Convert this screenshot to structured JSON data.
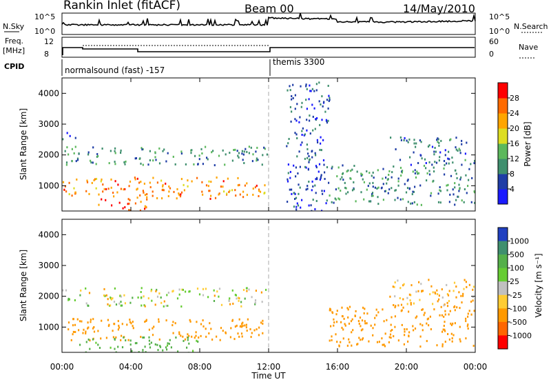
{
  "header": {
    "station": "Rankin Inlet (fitACF)",
    "beam": "Beam 00",
    "date": "14/May/2010"
  },
  "noise_panel": {
    "left_label": "N.Sky",
    "left_ticks": [
      "10^5",
      "10^0"
    ],
    "right_label": "N.Search",
    "right_ticks": [
      "10^5",
      "10^0"
    ]
  },
  "freq_panel": {
    "left_label_1": "Freq.",
    "left_label_2": "[MHz]",
    "left_ticks": [
      "12",
      "8"
    ],
    "right_label": "Nave",
    "right_ticks": [
      "60",
      "0"
    ]
  },
  "cpid_panel": {
    "label": "CPID",
    "segments": [
      {
        "text": "normalsound (fast) -157",
        "start_hour": 0
      },
      {
        "text": "themis 3300",
        "start_hour": 12
      }
    ]
  },
  "time_axis": {
    "label": "Time UT",
    "ticks": [
      "00:00",
      "04:00",
      "08:00",
      "12:00",
      "16:00",
      "20:00",
      "00:00"
    ],
    "tick_hours": [
      0,
      4,
      8,
      12,
      16,
      20,
      24
    ]
  },
  "range_axis": {
    "label": "Slant Range [km]",
    "ticks": [
      "1000",
      "2000",
      "3000",
      "4000"
    ],
    "tick_values": [
      1000,
      2000,
      3000,
      4000
    ],
    "min": 180,
    "max": 4500
  },
  "power_colorbar": {
    "label": "Power [dB]",
    "ticks": [
      "4",
      "8",
      "12",
      "16",
      "20",
      "24",
      "28"
    ],
    "colors": [
      "#1a1aff",
      "#1f3da6",
      "#3f8f6e",
      "#5cb85c",
      "#dddd22",
      "#ffa500",
      "#ff6a00",
      "#ff0000"
    ]
  },
  "velocity_colorbar": {
    "label": "Velocity [m s⁻¹]",
    "ticks": [
      "1000",
      "500",
      "100",
      "25",
      "-25",
      "-100",
      "-500",
      "-1000"
    ],
    "colors": [
      "#2040c0",
      "#3f8f6e",
      "#55b04a",
      "#66cc33",
      "#c0c0c0",
      "#ffcc33",
      "#ff9900",
      "#ff6600",
      "#ff0000"
    ]
  },
  "chart_data": {
    "type": "heatmap",
    "title": "Rankin Inlet (fitACF)  Beam 00  14/May/2010",
    "xlabel": "Time UT",
    "ylabel": "Slant Range [km]",
    "xlim": [
      0,
      24
    ],
    "ylim": [
      180,
      4500
    ],
    "mode_change_hour": 12,
    "power_regions": [
      {
        "t0": 0.0,
        "t1": 11.9,
        "r0": 600,
        "r1": 1300,
        "level": 24
      },
      {
        "t0": 0.0,
        "t1": 11.9,
        "r0": 1700,
        "r1": 2300,
        "level": 10
      },
      {
        "t0": 0.0,
        "t1": 0.8,
        "r0": 2500,
        "r1": 2800,
        "level": 6
      },
      {
        "t0": 2.0,
        "t1": 5.0,
        "r0": 180,
        "r1": 600,
        "level": 28
      },
      {
        "t0": 13.0,
        "t1": 15.5,
        "r0": 180,
        "r1": 4400,
        "level": 6
      },
      {
        "t0": 15.5,
        "t1": 24.0,
        "r0": 400,
        "r1": 1700,
        "level": 10
      },
      {
        "t0": 19.0,
        "t1": 24.0,
        "r0": 1700,
        "r1": 2600,
        "level": 8
      }
    ],
    "velocity_regions": [
      {
        "t0": 0.0,
        "t1": 11.9,
        "r0": 600,
        "r1": 1300,
        "level": -250
      },
      {
        "t0": 0.0,
        "t1": 11.9,
        "r0": 1700,
        "r1": 2300,
        "level": 0
      },
      {
        "t0": 1.0,
        "t1": 8.0,
        "r0": 180,
        "r1": 700,
        "level": 200
      },
      {
        "t0": 15.5,
        "t1": 24.0,
        "r0": 400,
        "r1": 1700,
        "level": -300
      },
      {
        "t0": 19.0,
        "t1": 24.0,
        "r0": 1700,
        "r1": 2600,
        "level": -150
      }
    ]
  }
}
